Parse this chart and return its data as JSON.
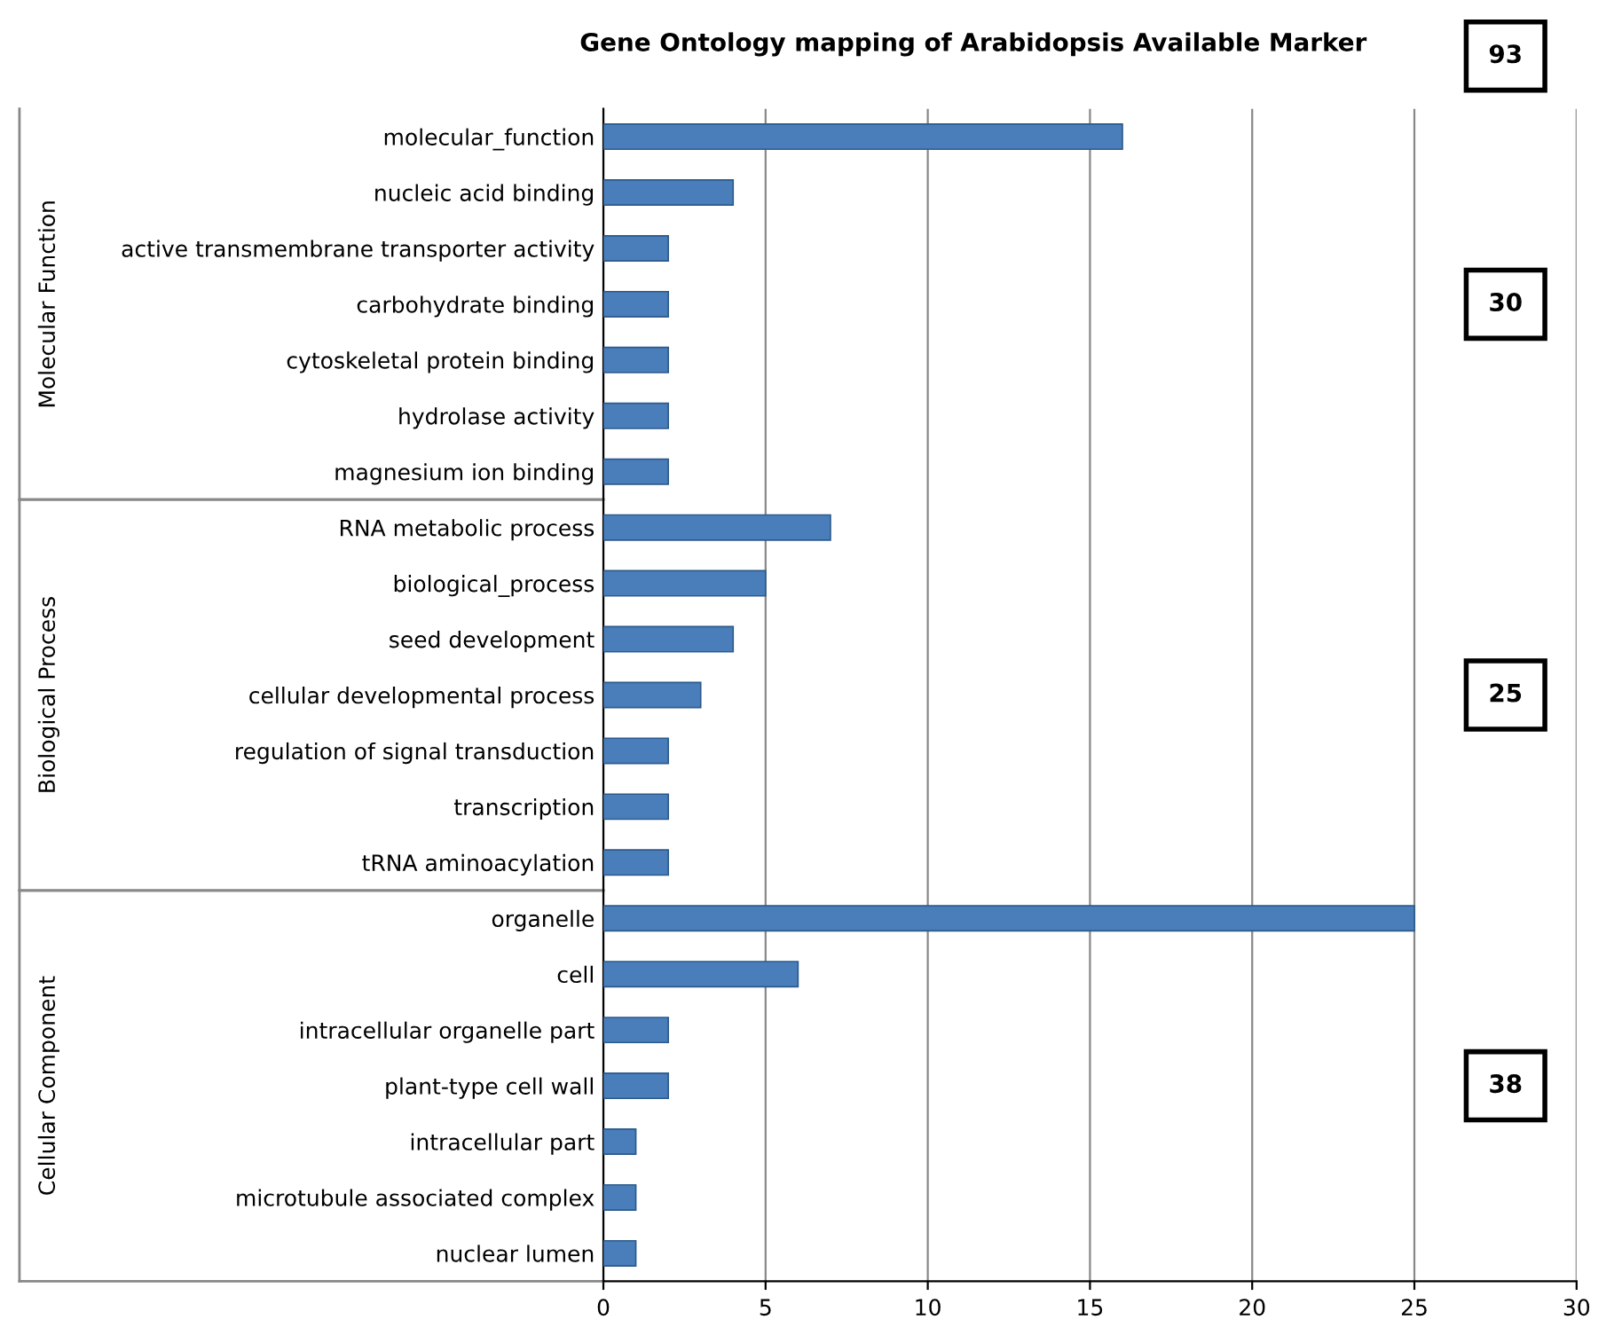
{
  "chart_data": {
    "type": "bar",
    "orientation": "horizontal",
    "title": "Gene Ontology mapping of Arabidopsis Available Marker",
    "categories": [
      "molecular_function",
      "nucleic acid binding",
      "active transmembrane transporter activity",
      "carbohydrate binding",
      "cytoskeletal protein binding",
      "hydrolase activity",
      "magnesium ion binding",
      "RNA metabolic process",
      "biological_process",
      "seed development",
      "cellular developmental process",
      "regulation of signal transduction",
      "transcription",
      "tRNA aminoacylation",
      "organelle",
      "cell",
      "intracellular organelle part",
      "plant-type cell wall",
      "intracellular part",
      "microtubule associated complex",
      "nuclear lumen"
    ],
    "values": [
      16,
      4,
      2,
      2,
      2,
      2,
      2,
      7,
      5,
      4,
      3,
      2,
      2,
      2,
      25,
      6,
      2,
      2,
      1,
      1,
      1
    ],
    "color": "#4a7ebb",
    "xlim": [
      0,
      30
    ],
    "xticks": [
      0,
      5,
      10,
      15,
      20,
      25,
      30
    ],
    "grid": "x",
    "annotations": [
      "93",
      "Molecular Function",
      "30",
      "Biological Process",
      "25",
      "Cellular Component",
      "38"
    ]
  }
}
